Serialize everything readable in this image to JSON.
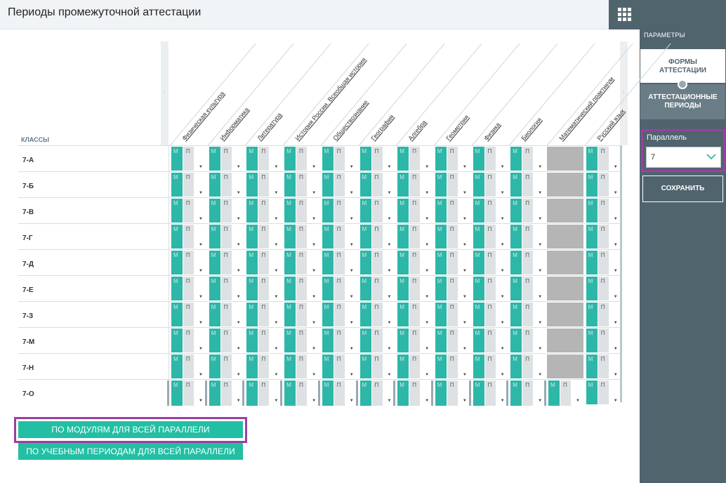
{
  "page": {
    "title": "Периоды промежуточной аттестации"
  },
  "panel": {
    "section_label": "ПАРАМЕТРЫ",
    "tab_forms": [
      "ФОРМЫ",
      "АТТЕСТАЦИИ"
    ],
    "tab_periods": [
      "АТТЕСТАЦИОННЫЕ",
      "ПЕРИОДЫ"
    ],
    "parallel_label": "Параллель",
    "parallel_value": "7",
    "save_label": "СОХРАНИТЬ"
  },
  "grid": {
    "classes_header": "КЛАССЫ",
    "subjects": [
      "Физическая культура",
      "Информатика",
      "Литература",
      "История России. Всеобщая история",
      "Обществознание",
      "География",
      "Алгебра",
      "Геометрия",
      "Физика",
      "Биология",
      "Математический практикум",
      "Русский язык"
    ],
    "classes": [
      "7-А",
      "7-Б",
      "7-В",
      "7-Г",
      "7-Д",
      "7-Е",
      "7-З",
      "7-М",
      "7-Н",
      "7-О"
    ],
    "module_letter": "М",
    "period_letter": "П",
    "disabled_column": "Математический практикум"
  },
  "actions": {
    "by_modules": "ПО МОДУЛЯМ ДЛЯ ВСЕЙ ПАРАЛЛЕЛИ",
    "by_periods": "ПО УЧЕБНЫМ ПЕРИОДАМ ДЛЯ ВСЕЙ ПАРАЛЛЕЛИ"
  },
  "colors": {
    "accent_teal": "#22bfa4",
    "panel_slate": "#50646e",
    "highlight_purple": "#9b3fa0",
    "disabled_gray": "#b5b5b5"
  }
}
